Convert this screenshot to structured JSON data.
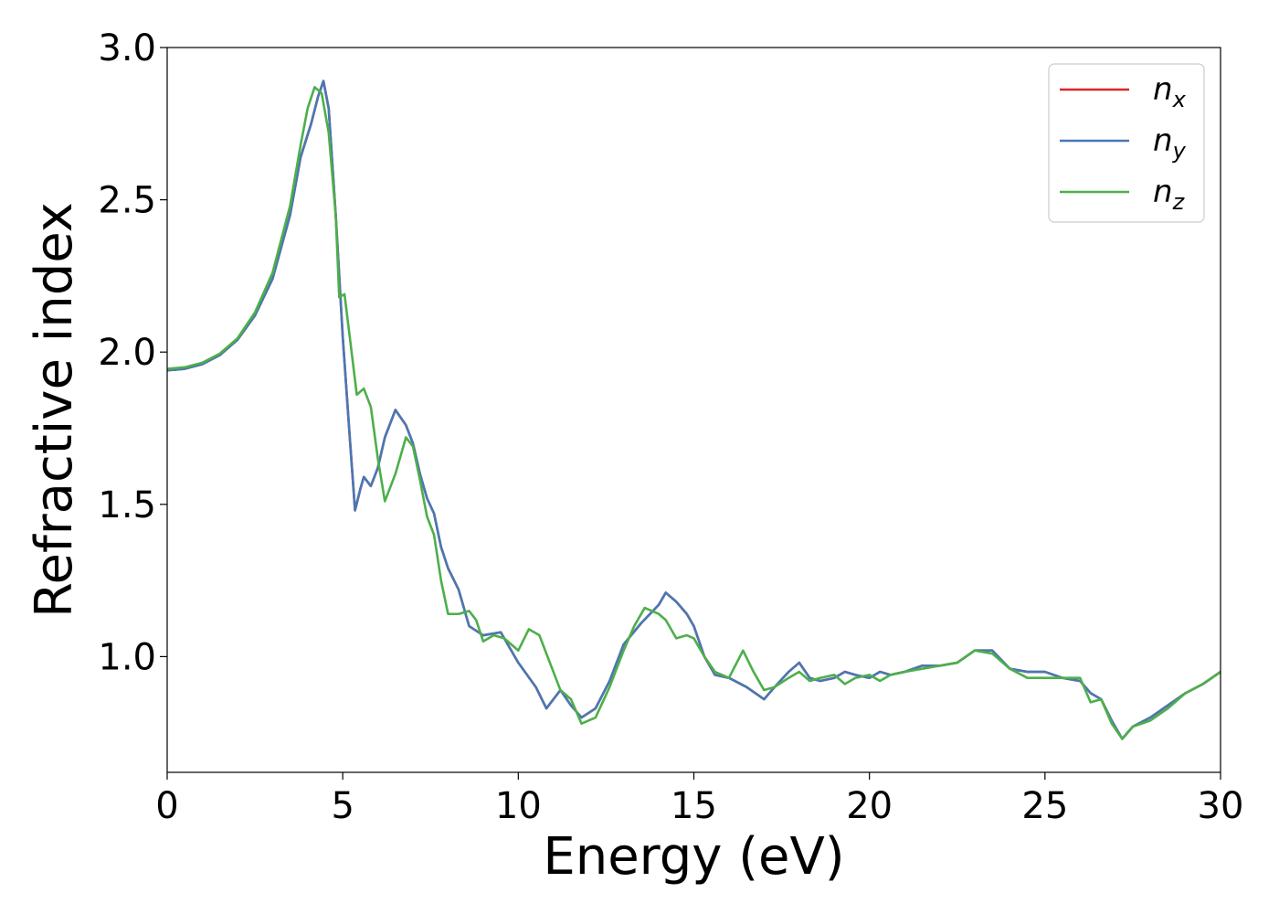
{
  "chart_data": {
    "type": "line",
    "xlabel": "Energy (eV)",
    "ylabel": "Refractive index",
    "xlim": [
      0,
      30
    ],
    "ylim": [
      0.62,
      3.0
    ],
    "xticks": [
      0,
      5,
      10,
      15,
      20,
      25,
      30
    ],
    "xtick_labels": [
      "0",
      "5",
      "10",
      "15",
      "20",
      "25",
      "30"
    ],
    "yticks": [
      1.0,
      1.5,
      2.0,
      2.5,
      3.0
    ],
    "ytick_labels": [
      "1.0",
      "1.5",
      "2.0",
      "2.5",
      "3.0"
    ],
    "grid": false,
    "legend_position": "top-right",
    "series": [
      {
        "name": "n_x",
        "label_base": "n",
        "label_sub": "x",
        "color": "#d62728",
        "x": [
          0,
          0.5,
          1,
          1.5,
          2,
          2.5,
          3,
          3.5,
          3.8,
          4.1,
          4.3,
          4.45,
          4.6,
          4.8,
          5.0,
          5.2,
          5.35,
          5.5,
          5.6,
          5.8,
          6.0,
          6.2,
          6.5,
          6.8,
          7.0,
          7.2,
          7.4,
          7.6,
          7.8,
          8.0,
          8.3,
          8.6,
          9.0,
          9.5,
          10.0,
          10.5,
          10.8,
          11.0,
          11.2,
          11.5,
          11.8,
          12.2,
          12.6,
          13.0,
          13.5,
          14.0,
          14.2,
          14.5,
          14.8,
          15.0,
          15.3,
          15.6,
          16.0,
          16.5,
          17.0,
          17.3,
          17.7,
          18.0,
          18.3,
          18.6,
          19.0,
          19.3,
          19.6,
          20.0,
          20.3,
          20.6,
          21.0,
          21.5,
          22.0,
          22.5,
          23.0,
          23.5,
          24.0,
          24.5,
          25.0,
          25.5,
          26.0,
          26.3,
          26.6,
          26.9,
          27.2,
          27.5,
          28.0,
          28.5,
          29.0,
          29.5,
          30.0
        ],
        "y": [
          1.94,
          1.945,
          1.96,
          1.99,
          2.04,
          2.12,
          2.24,
          2.45,
          2.64,
          2.75,
          2.84,
          2.89,
          2.8,
          2.45,
          2.05,
          1.72,
          1.48,
          1.55,
          1.59,
          1.56,
          1.62,
          1.72,
          1.81,
          1.76,
          1.7,
          1.6,
          1.52,
          1.47,
          1.36,
          1.29,
          1.22,
          1.1,
          1.07,
          1.08,
          0.98,
          0.9,
          0.83,
          0.86,
          0.89,
          0.84,
          0.8,
          0.83,
          0.92,
          1.04,
          1.11,
          1.17,
          1.21,
          1.18,
          1.14,
          1.1,
          1.0,
          0.94,
          0.93,
          0.9,
          0.86,
          0.9,
          0.95,
          0.98,
          0.93,
          0.92,
          0.93,
          0.95,
          0.94,
          0.93,
          0.95,
          0.94,
          0.95,
          0.97,
          0.97,
          0.98,
          1.02,
          1.02,
          0.96,
          0.95,
          0.95,
          0.93,
          0.92,
          0.88,
          0.86,
          0.79,
          0.73,
          0.77,
          0.8,
          0.84,
          0.88,
          0.91,
          0.95
        ]
      },
      {
        "name": "n_y",
        "label_base": "n",
        "label_sub": "y",
        "color": "#4878b4",
        "x": [
          0,
          0.5,
          1,
          1.5,
          2,
          2.5,
          3,
          3.5,
          3.8,
          4.1,
          4.3,
          4.45,
          4.6,
          4.8,
          5.0,
          5.2,
          5.35,
          5.5,
          5.6,
          5.8,
          6.0,
          6.2,
          6.5,
          6.8,
          7.0,
          7.2,
          7.4,
          7.6,
          7.8,
          8.0,
          8.3,
          8.6,
          9.0,
          9.5,
          10.0,
          10.5,
          10.8,
          11.0,
          11.2,
          11.5,
          11.8,
          12.2,
          12.6,
          13.0,
          13.5,
          14.0,
          14.2,
          14.5,
          14.8,
          15.0,
          15.3,
          15.6,
          16.0,
          16.5,
          17.0,
          17.3,
          17.7,
          18.0,
          18.3,
          18.6,
          19.0,
          19.3,
          19.6,
          20.0,
          20.3,
          20.6,
          21.0,
          21.5,
          22.0,
          22.5,
          23.0,
          23.5,
          24.0,
          24.5,
          25.0,
          25.5,
          26.0,
          26.3,
          26.6,
          26.9,
          27.2,
          27.5,
          28.0,
          28.5,
          29.0,
          29.5,
          30.0
        ],
        "y": [
          1.94,
          1.945,
          1.96,
          1.99,
          2.04,
          2.12,
          2.24,
          2.45,
          2.64,
          2.75,
          2.84,
          2.89,
          2.8,
          2.45,
          2.05,
          1.72,
          1.48,
          1.55,
          1.59,
          1.56,
          1.62,
          1.72,
          1.81,
          1.76,
          1.7,
          1.6,
          1.52,
          1.47,
          1.36,
          1.29,
          1.22,
          1.1,
          1.07,
          1.08,
          0.98,
          0.9,
          0.83,
          0.86,
          0.89,
          0.84,
          0.8,
          0.83,
          0.92,
          1.04,
          1.11,
          1.17,
          1.21,
          1.18,
          1.14,
          1.1,
          1.0,
          0.94,
          0.93,
          0.9,
          0.86,
          0.9,
          0.95,
          0.98,
          0.93,
          0.92,
          0.93,
          0.95,
          0.94,
          0.93,
          0.95,
          0.94,
          0.95,
          0.97,
          0.97,
          0.98,
          1.02,
          1.02,
          0.96,
          0.95,
          0.95,
          0.93,
          0.92,
          0.88,
          0.86,
          0.79,
          0.73,
          0.77,
          0.8,
          0.84,
          0.88,
          0.91,
          0.95
        ]
      },
      {
        "name": "n_z",
        "label_base": "n",
        "label_sub": "z",
        "color": "#4daf4a",
        "x": [
          0,
          0.5,
          1,
          1.5,
          2,
          2.5,
          3,
          3.5,
          3.8,
          4.0,
          4.2,
          4.4,
          4.6,
          4.8,
          4.9,
          5.05,
          5.2,
          5.4,
          5.6,
          5.8,
          6.0,
          6.2,
          6.5,
          6.8,
          7.0,
          7.2,
          7.4,
          7.6,
          7.8,
          8.0,
          8.3,
          8.6,
          8.8,
          9.0,
          9.3,
          9.6,
          10.0,
          10.3,
          10.6,
          10.9,
          11.2,
          11.5,
          11.8,
          12.2,
          12.6,
          13.0,
          13.3,
          13.6,
          14.0,
          14.2,
          14.5,
          14.8,
          15.0,
          15.3,
          15.6,
          16.0,
          16.4,
          16.7,
          17.0,
          17.3,
          17.7,
          18.0,
          18.3,
          18.6,
          19.0,
          19.3,
          19.6,
          20.0,
          20.3,
          20.6,
          21.0,
          21.5,
          22.0,
          22.5,
          23.0,
          23.5,
          24.0,
          24.5,
          25.0,
          25.5,
          26.0,
          26.3,
          26.6,
          26.9,
          27.2,
          27.5,
          28.0,
          28.5,
          29.0,
          29.5,
          30.0
        ],
        "y": [
          1.945,
          1.95,
          1.965,
          1.995,
          2.045,
          2.13,
          2.26,
          2.48,
          2.68,
          2.8,
          2.87,
          2.85,
          2.72,
          2.45,
          2.18,
          2.19,
          2.05,
          1.86,
          1.88,
          1.82,
          1.65,
          1.51,
          1.6,
          1.72,
          1.69,
          1.58,
          1.46,
          1.4,
          1.25,
          1.14,
          1.14,
          1.15,
          1.12,
          1.05,
          1.07,
          1.06,
          1.02,
          1.09,
          1.07,
          0.98,
          0.89,
          0.86,
          0.78,
          0.8,
          0.9,
          1.02,
          1.1,
          1.16,
          1.14,
          1.12,
          1.06,
          1.07,
          1.06,
          1.0,
          0.95,
          0.93,
          1.02,
          0.95,
          0.89,
          0.9,
          0.93,
          0.95,
          0.92,
          0.93,
          0.94,
          0.91,
          0.93,
          0.94,
          0.92,
          0.94,
          0.95,
          0.96,
          0.97,
          0.98,
          1.02,
          1.01,
          0.96,
          0.93,
          0.93,
          0.93,
          0.93,
          0.85,
          0.86,
          0.78,
          0.73,
          0.77,
          0.79,
          0.83,
          0.88,
          0.91,
          0.95
        ]
      }
    ]
  }
}
